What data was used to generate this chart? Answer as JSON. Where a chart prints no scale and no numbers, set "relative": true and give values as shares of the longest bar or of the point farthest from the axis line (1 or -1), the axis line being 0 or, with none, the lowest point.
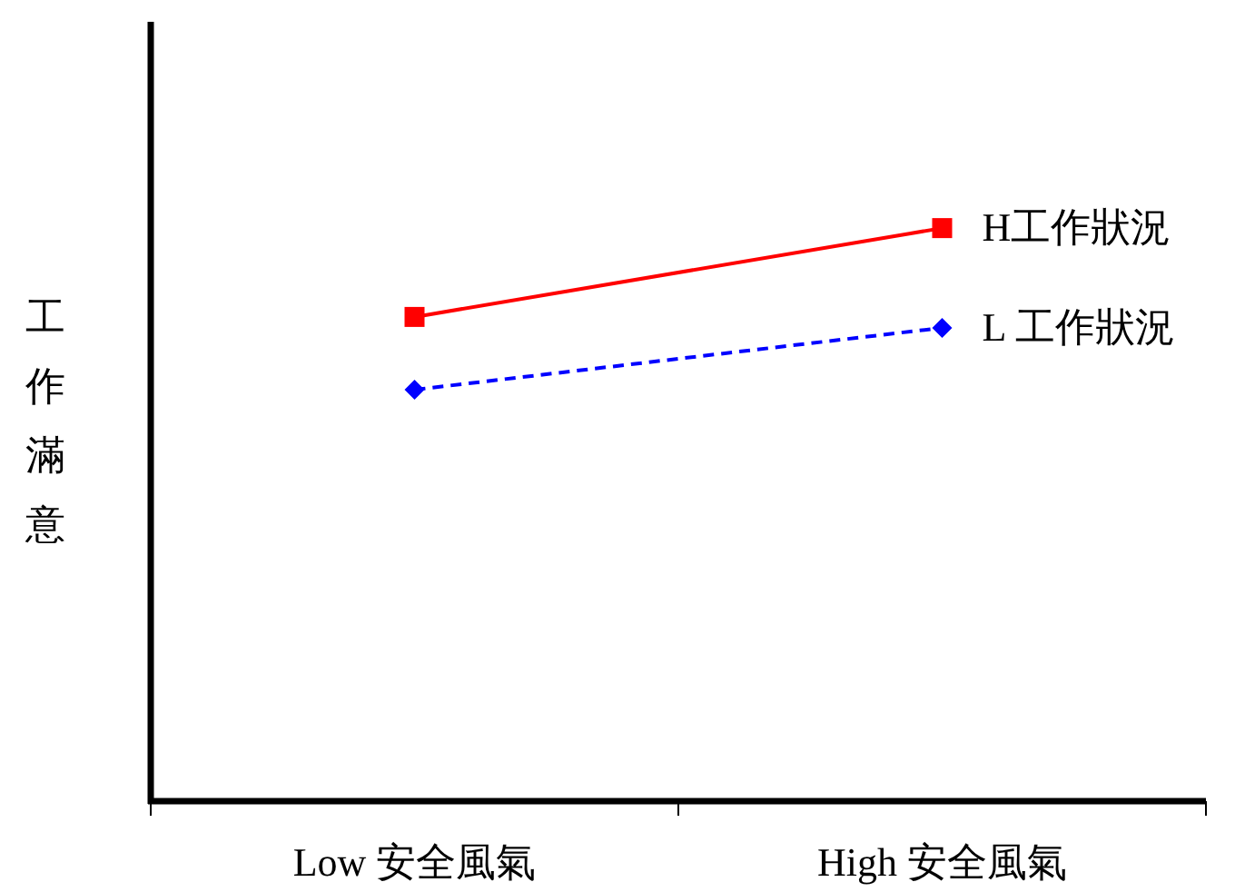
{
  "chart_data": {
    "type": "line",
    "relative": true,
    "ylabel": "工作滿意",
    "categories": [
      "Low 安全風氣",
      "High 安全風氣"
    ],
    "legend": false,
    "series": [
      {
        "name": "H工作狀況",
        "color": "#ff0000",
        "values": [
          0.845,
          1
        ],
        "marker": "square",
        "line_style": "solid"
      },
      {
        "name": "L 工作狀況",
        "color": "#0000ff",
        "values": [
          0.718,
          0.826
        ],
        "marker": "diamond",
        "line_style": "dashed"
      }
    ]
  }
}
